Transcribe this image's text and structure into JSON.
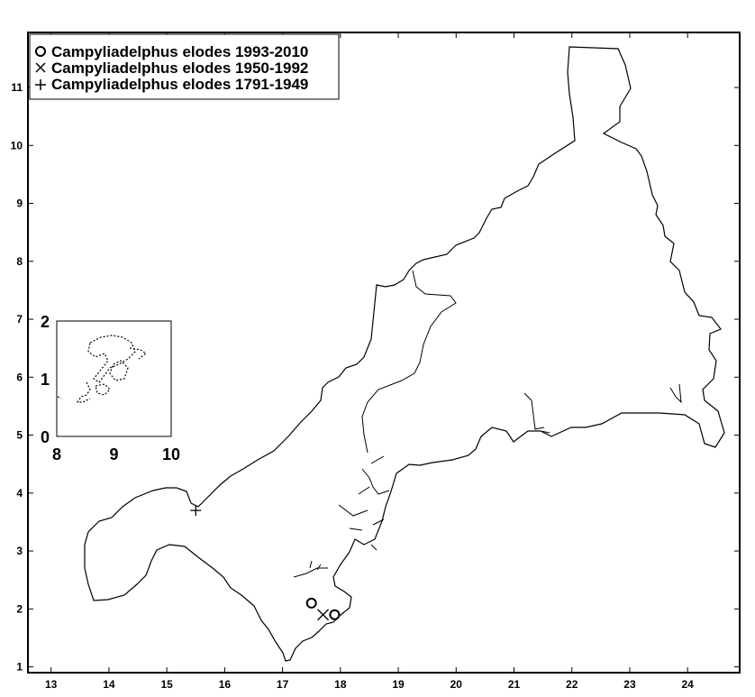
{
  "map": {
    "x_ticks": [
      "13",
      "14",
      "15",
      "16",
      "17",
      "18",
      "19",
      "20",
      "21",
      "22",
      "23",
      "24"
    ],
    "y_ticks": [
      "1",
      "2",
      "3",
      "4",
      "5",
      "6",
      "7",
      "8",
      "9",
      "10",
      "11"
    ],
    "x_range": [
      12.6,
      24.9
    ],
    "y_range": [
      0.9,
      11.95
    ]
  },
  "legend": {
    "entries": [
      {
        "marker": "circle",
        "label": "Campyliadelphus elodes 1993-2010"
      },
      {
        "marker": "cross",
        "label": "Campyliadelphus elodes 1950-1992"
      },
      {
        "marker": "plus",
        "label": "Campyliadelphus elodes 1791-1949"
      }
    ]
  },
  "records": {
    "recent_circles": [
      [
        17.5,
        2.1
      ],
      [
        17.9,
        1.9
      ]
    ],
    "mid_crosses": [
      [
        17.7,
        1.9
      ]
    ],
    "old_pluses": [
      [
        15.5,
        3.7
      ]
    ]
  },
  "inset": {
    "x_ticks": [
      "8",
      "9",
      "10"
    ],
    "y_ticks": [
      "0",
      "1",
      "2"
    ],
    "x_range": [
      8,
      10
    ],
    "y_range": [
      0,
      2
    ]
  },
  "colors": {
    "line": "#000000",
    "background": "#ffffff"
  }
}
